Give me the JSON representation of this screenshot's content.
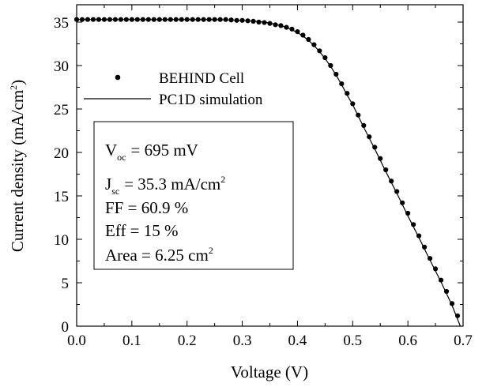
{
  "chart_data": {
    "type": "scatter",
    "xlabel": "Voltage (V)",
    "ylabel": {
      "main": "Current density (mA/cm",
      "sup": "2",
      "end": ")"
    },
    "xlim": [
      0.0,
      0.7
    ],
    "ylim": [
      0,
      37
    ],
    "xticks": [
      "0.0",
      "0.1",
      "0.2",
      "0.3",
      "0.4",
      "0.5",
      "0.6",
      "0.7"
    ],
    "yticks": [
      "0",
      "5",
      "10",
      "15",
      "20",
      "25",
      "30",
      "35"
    ],
    "grid": false,
    "legend_position": "upper-left",
    "series": [
      {
        "name": "BEHIND Cell",
        "style": "markers",
        "color": "#000000",
        "x": [
          0.0,
          0.01,
          0.02,
          0.03,
          0.04,
          0.05,
          0.06,
          0.07,
          0.08,
          0.09,
          0.1,
          0.11,
          0.12,
          0.13,
          0.14,
          0.15,
          0.16,
          0.17,
          0.18,
          0.19,
          0.2,
          0.21,
          0.22,
          0.23,
          0.24,
          0.25,
          0.26,
          0.27,
          0.28,
          0.29,
          0.3,
          0.31,
          0.32,
          0.33,
          0.34,
          0.35,
          0.36,
          0.37,
          0.38,
          0.39,
          0.4,
          0.41,
          0.42,
          0.43,
          0.44,
          0.45,
          0.46,
          0.47,
          0.48,
          0.49,
          0.5,
          0.51,
          0.52,
          0.53,
          0.54,
          0.55,
          0.56,
          0.57,
          0.58,
          0.59,
          0.6,
          0.61,
          0.62,
          0.63,
          0.64,
          0.65,
          0.66,
          0.67,
          0.68,
          0.69
        ],
        "y": [
          35.3,
          35.3,
          35.3,
          35.3,
          35.3,
          35.3,
          35.3,
          35.3,
          35.3,
          35.3,
          35.3,
          35.3,
          35.3,
          35.3,
          35.3,
          35.3,
          35.3,
          35.3,
          35.3,
          35.3,
          35.3,
          35.3,
          35.3,
          35.3,
          35.3,
          35.3,
          35.3,
          35.3,
          35.25,
          35.2,
          35.2,
          35.15,
          35.1,
          35.0,
          34.95,
          34.85,
          34.7,
          34.6,
          34.4,
          34.2,
          33.9,
          33.5,
          33.0,
          32.4,
          31.7,
          30.9,
          30.0,
          29.0,
          27.9,
          26.8,
          25.6,
          24.3,
          23.1,
          21.8,
          20.6,
          19.3,
          18.0,
          16.7,
          15.5,
          14.2,
          13.0,
          11.7,
          10.4,
          9.1,
          7.8,
          6.6,
          5.3,
          4.0,
          2.6,
          1.2
        ]
      },
      {
        "name": "PC1D simulation",
        "style": "line",
        "color": "#000000",
        "x": [
          0.0,
          0.05,
          0.1,
          0.15,
          0.2,
          0.25,
          0.3,
          0.32,
          0.34,
          0.36,
          0.38,
          0.4,
          0.41,
          0.42,
          0.43,
          0.44,
          0.45,
          0.46,
          0.47,
          0.48,
          0.49,
          0.5,
          0.52,
          0.54,
          0.56,
          0.58,
          0.6,
          0.62,
          0.64,
          0.66,
          0.68,
          0.695
        ],
        "y": [
          35.3,
          35.3,
          35.3,
          35.3,
          35.3,
          35.3,
          35.2,
          35.1,
          35.0,
          34.75,
          34.4,
          33.8,
          33.4,
          32.9,
          32.3,
          31.6,
          30.8,
          29.9,
          28.9,
          27.8,
          26.6,
          25.5,
          22.9,
          20.4,
          17.8,
          15.3,
          12.7,
          10.2,
          7.6,
          5.1,
          2.4,
          0.0
        ]
      }
    ],
    "annotation_box": {
      "voc": {
        "base": "V",
        "sub": "oc",
        "text": "= 695 mV"
      },
      "jsc": {
        "base": "J",
        "sub": "sc",
        "text": "= 35.3 mA/cm",
        "sup": "2"
      },
      "ff": "FF = 60.9 %",
      "eff": "Eff = 15 %",
      "area": {
        "text": "Area = 6.25 cm",
        "sup": "2"
      }
    }
  }
}
